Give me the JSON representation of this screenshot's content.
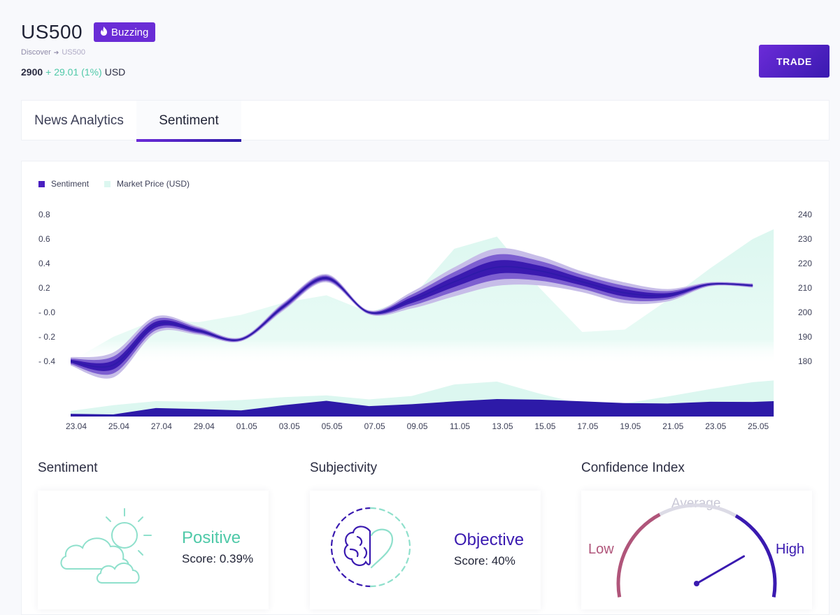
{
  "header": {
    "symbol": "US500",
    "badge_label": "Buzzing",
    "breadcrumb": [
      "Discover",
      "US500"
    ],
    "price": "2900",
    "change": "+ 29.01 (1%)",
    "currency": "USD",
    "trade_label": "TRADE"
  },
  "tabs": [
    {
      "label": "News Analytics",
      "active": false
    },
    {
      "label": "Sentiment",
      "active": true
    }
  ],
  "colors": {
    "accent": "#6a2cd6",
    "sentiment": "#3a1ab0",
    "market_price": "#e2f8f2",
    "positive": "#4fc9a8",
    "low": "#b0557a"
  },
  "chart_data": {
    "type": "area",
    "legend": [
      {
        "name": "Sentiment",
        "color": "#4a1fc0"
      },
      {
        "name": "Market Price (USD)",
        "color": "#dcf7f0"
      }
    ],
    "x": [
      "23.04",
      "25.04",
      "27.04",
      "29.04",
      "01.05",
      "03.05",
      "05.05",
      "07.05",
      "09.05",
      "11.05",
      "13.05",
      "15.05",
      "17.05",
      "19.05",
      "21.05",
      "23.05",
      "25.05"
    ],
    "y_left_ticks": [
      "0.8",
      "0.6",
      "0.4",
      "0.2",
      "- 0.0",
      "- 0.2",
      "- 0.4"
    ],
    "y_right_ticks": [
      "240",
      "230",
      "220",
      "210",
      "200",
      "190",
      "180"
    ],
    "ylim_left": [
      -0.4,
      0.8
    ],
    "ylim_right": [
      180,
      240
    ],
    "sentiment": [
      -0.4,
      -0.43,
      -0.1,
      -0.15,
      -0.22,
      0.05,
      0.28,
      0.0,
      0.1,
      0.25,
      0.37,
      0.34,
      0.25,
      0.16,
      0.14,
      0.23,
      0.22
    ],
    "sentiment_spread": [
      0.02,
      0.06,
      0.04,
      0.02,
      0.01,
      0.02,
      0.02,
      0.01,
      0.04,
      0.07,
      0.09,
      0.07,
      0.05,
      0.05,
      0.03,
      0.01,
      0.01
    ],
    "market_price": [
      180,
      190,
      197,
      196,
      199,
      204,
      207,
      200,
      206,
      226,
      231,
      210,
      192,
      193,
      205,
      218,
      230
    ]
  },
  "sections": {
    "sentiment": {
      "title": "Sentiment",
      "label": "Positive",
      "score": "Score: 0.39%"
    },
    "subjectivity": {
      "title": "Subjectivity",
      "label": "Objective",
      "score": "Score: 40%"
    },
    "confidence": {
      "title": "Confidence Index",
      "low": "Low",
      "average": "Average",
      "high": "High",
      "value": 0.8
    }
  }
}
